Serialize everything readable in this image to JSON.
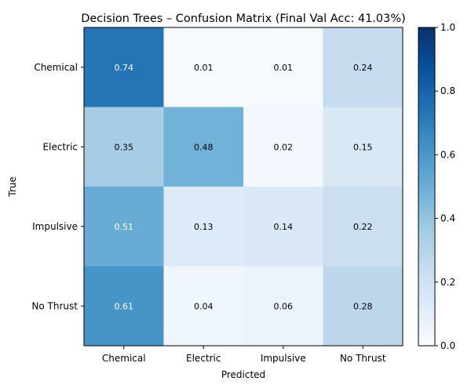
{
  "chart_data": {
    "type": "heatmap",
    "title": "Decision Trees – Confusion Matrix (Final Val Acc: 41.03%)",
    "xlabel": "Predicted",
    "ylabel": "True",
    "x_categories": [
      "Chemical",
      "Electric",
      "Impulsive",
      "No Thrust"
    ],
    "y_categories": [
      "Chemical",
      "Electric",
      "Impulsive",
      "No Thrust"
    ],
    "values": [
      [
        0.74,
        0.01,
        0.01,
        0.24
      ],
      [
        0.35,
        0.48,
        0.02,
        0.15
      ],
      [
        0.51,
        0.13,
        0.14,
        0.22
      ],
      [
        0.61,
        0.04,
        0.06,
        0.28
      ]
    ],
    "colormap": "Blues",
    "vmin": 0.0,
    "vmax": 1.0,
    "colorbar_ticks": [
      "0.0",
      "0.2",
      "0.4",
      "0.6",
      "0.8",
      "1.0"
    ],
    "grid": false
  }
}
